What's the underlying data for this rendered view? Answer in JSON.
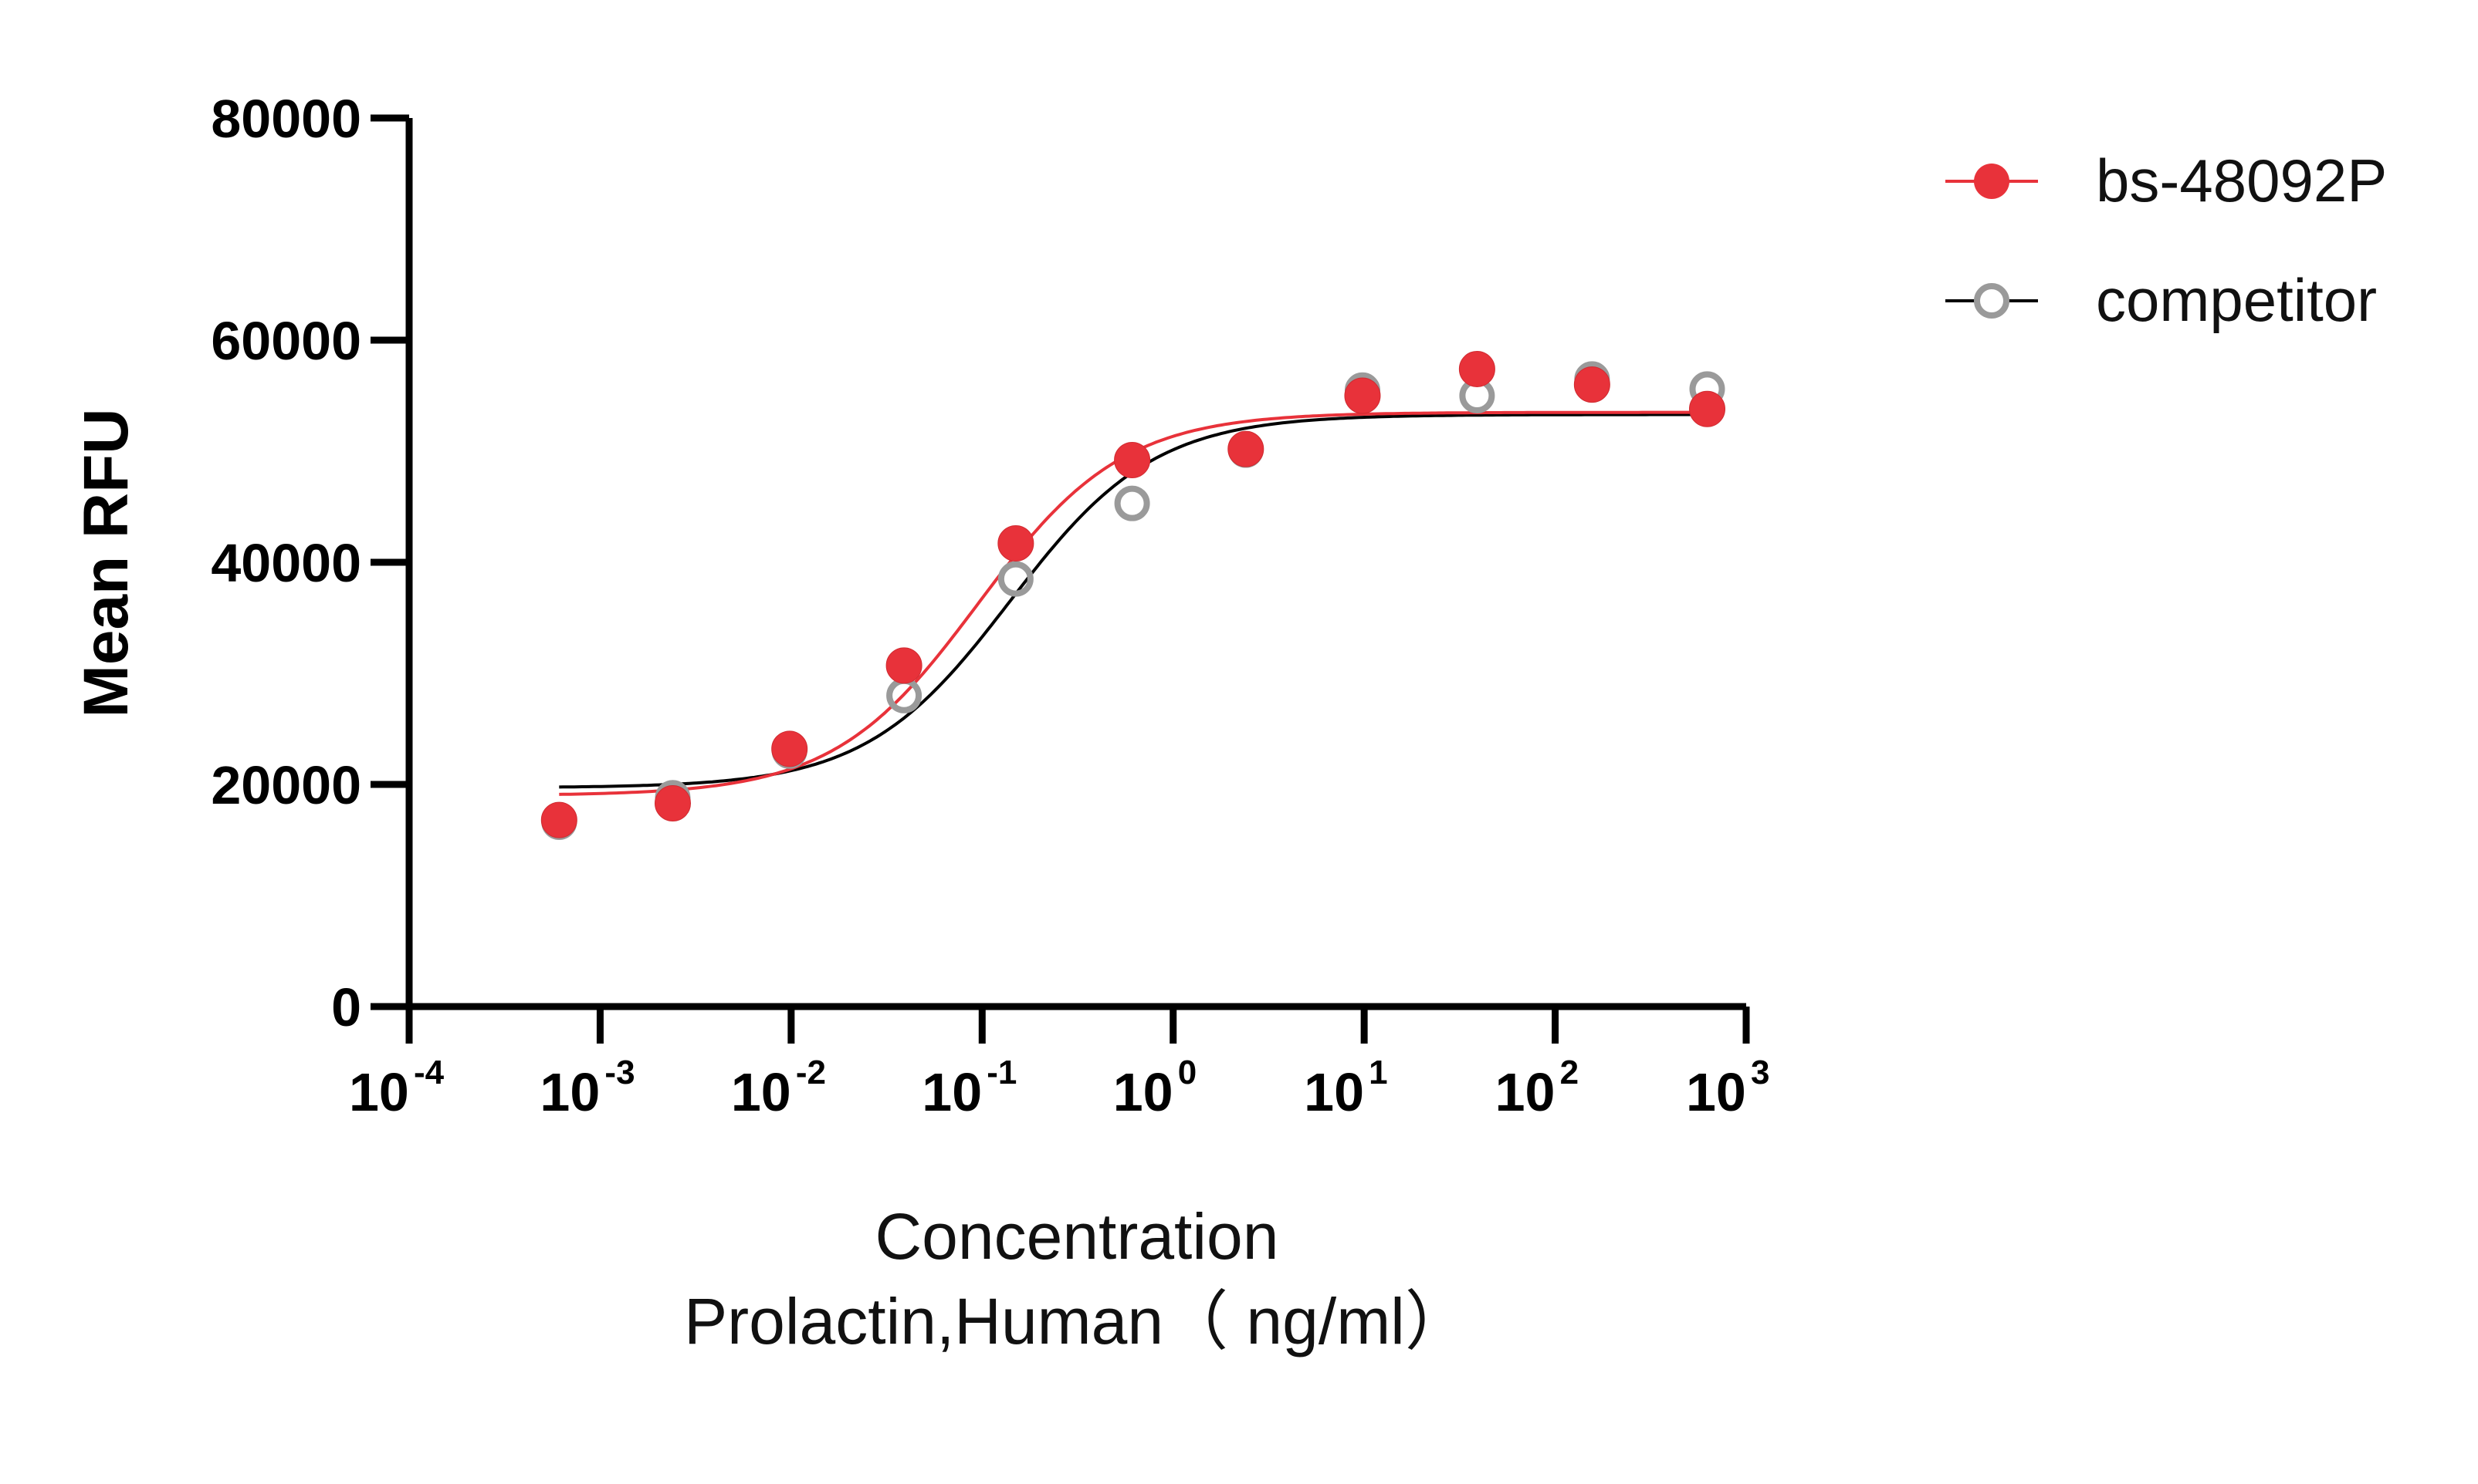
{
  "chart_data": {
    "type": "scatter",
    "title": "",
    "ylabel": "Mean RFU",
    "xlabel_line1": "Concentration",
    "xlabel_line2": "Prolactin,Human（ ng/ml）",
    "x_scale": "log",
    "xlim": [
      0.0001,
      1000
    ],
    "ylim": [
      0,
      80000
    ],
    "y_ticks": [
      {
        "value": 0,
        "label": "0"
      },
      {
        "value": 20000,
        "label": "20000"
      },
      {
        "value": 40000,
        "label": "40000"
      },
      {
        "value": 60000,
        "label": "60000"
      },
      {
        "value": 80000,
        "label": "80000"
      }
    ],
    "x_ticks": [
      {
        "value": 0.0001,
        "base": "10",
        "exp": "-4"
      },
      {
        "value": 0.001,
        "base": "10",
        "exp": "-3"
      },
      {
        "value": 0.01,
        "base": "10",
        "exp": "-2"
      },
      {
        "value": 0.1,
        "base": "10",
        "exp": "-1"
      },
      {
        "value": 1,
        "base": "10",
        "exp": "0"
      },
      {
        "value": 10,
        "base": "10",
        "exp": "1"
      },
      {
        "value": 100,
        "base": "10",
        "exp": "2"
      },
      {
        "value": 1000,
        "base": "10",
        "exp": "3"
      }
    ],
    "grid": false,
    "legend_position": "top-right",
    "series": [
      {
        "name": "bs-48092P",
        "color": "#e8323a",
        "marker": "filled-circle",
        "x": [
          0.00061,
          0.0024,
          0.0098,
          0.039,
          0.15,
          0.61,
          2.4,
          9.8,
          39,
          156,
          625
        ],
        "y": [
          16800,
          18300,
          23200,
          30700,
          41700,
          49200,
          50200,
          55000,
          57400,
          56000,
          53800
        ],
        "fit": {
          "bottom": 19000,
          "top": 53500,
          "ec50": 0.095,
          "hill": 1.15
        }
      },
      {
        "name": "competitor",
        "color": "#000000",
        "marker_color": "#9a9a9a",
        "marker": "open-circle",
        "x": [
          0.00061,
          0.0024,
          0.0098,
          0.039,
          0.15,
          0.61,
          2.4,
          9.8,
          39,
          156,
          625
        ],
        "y": [
          16600,
          18800,
          23000,
          28000,
          38500,
          45300,
          50100,
          55500,
          55000,
          56500,
          55600
        ],
        "fit": {
          "bottom": 19700,
          "top": 53300,
          "ec50": 0.14,
          "hill": 1.15
        }
      }
    ]
  }
}
